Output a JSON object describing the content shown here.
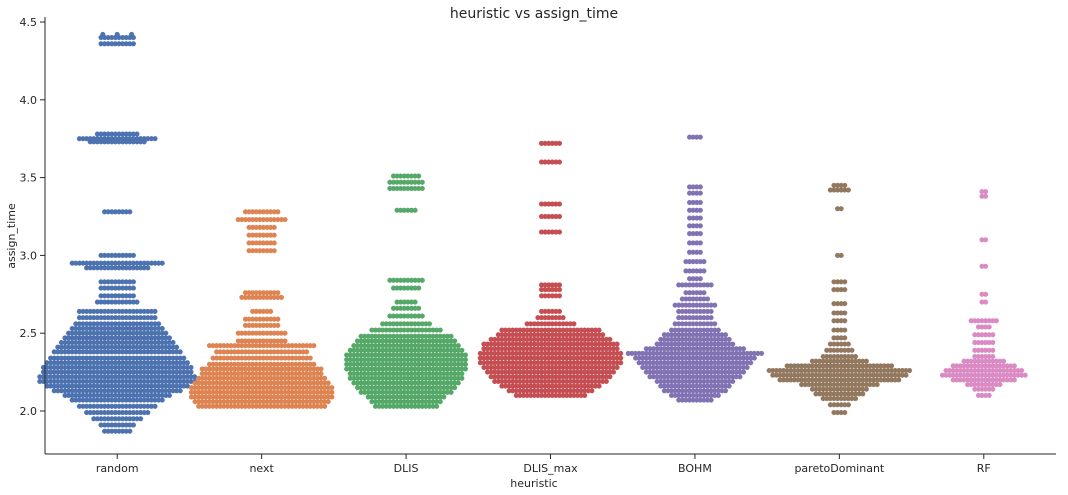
{
  "chart_data": {
    "type": "scatter",
    "subtype": "swarm",
    "title": "heuristic vs assign_time",
    "xlabel": "heuristic",
    "ylabel": "assign_time",
    "ylim": [
      1.72,
      4.53
    ],
    "yticks": [
      2.0,
      2.5,
      3.0,
      3.5,
      4.0,
      4.5
    ],
    "ytick_labels": [
      "2.0",
      "2.5",
      "3.0",
      "3.5",
      "4.0",
      "4.5"
    ],
    "grid": false,
    "legend": "none",
    "categories": [
      "random",
      "next",
      "DLIS",
      "DLIS_max",
      "BOHM",
      "paretoDominant",
      "RF"
    ],
    "colors": [
      "#4c72b0",
      "#dd8452",
      "#55a868",
      "#c44e52",
      "#8172b3",
      "#937860",
      "#da8bc3"
    ],
    "series": [
      {
        "category": "random",
        "bins": [
          [
            1.87,
            8
          ],
          [
            1.91,
            10
          ],
          [
            1.95,
            14
          ],
          [
            1.99,
            18
          ],
          [
            2.03,
            22
          ],
          [
            2.07,
            26
          ],
          [
            2.1,
            30
          ],
          [
            2.13,
            36
          ],
          [
            2.16,
            40
          ],
          [
            2.19,
            44
          ],
          [
            2.22,
            44
          ],
          [
            2.25,
            42
          ],
          [
            2.28,
            42
          ],
          [
            2.31,
            40
          ],
          [
            2.34,
            38
          ],
          [
            2.38,
            36
          ],
          [
            2.41,
            34
          ],
          [
            2.44,
            32
          ],
          [
            2.47,
            30
          ],
          [
            2.5,
            28
          ],
          [
            2.53,
            26
          ],
          [
            2.56,
            24
          ],
          [
            2.6,
            22
          ],
          [
            2.64,
            22
          ],
          [
            2.7,
            12
          ],
          [
            2.74,
            10
          ],
          [
            2.79,
            10
          ],
          [
            2.83,
            10
          ],
          [
            2.92,
            18
          ],
          [
            2.95,
            26
          ],
          [
            3.0,
            10
          ],
          [
            3.28,
            8
          ],
          [
            3.73,
            16
          ],
          [
            3.75,
            22
          ],
          [
            3.78,
            12
          ],
          [
            4.36,
            10
          ],
          [
            4.4,
            10
          ]
        ],
        "extras": [
          4.42,
          4.42,
          4.42
        ]
      },
      {
        "category": "next",
        "bins": [
          [
            2.03,
            36
          ],
          [
            2.06,
            38
          ],
          [
            2.09,
            40
          ],
          [
            2.12,
            40
          ],
          [
            2.15,
            40
          ],
          [
            2.18,
            38
          ],
          [
            2.21,
            36
          ],
          [
            2.24,
            34
          ],
          [
            2.27,
            34
          ],
          [
            2.3,
            30
          ],
          [
            2.34,
            28
          ],
          [
            2.38,
            26
          ],
          [
            2.42,
            30
          ],
          [
            2.45,
            14
          ],
          [
            2.5,
            14
          ],
          [
            2.55,
            10
          ],
          [
            2.59,
            10
          ],
          [
            2.64,
            6
          ],
          [
            2.73,
            12
          ],
          [
            2.76,
            10
          ],
          [
            3.03,
            8
          ],
          [
            3.08,
            8
          ],
          [
            3.13,
            8
          ],
          [
            3.18,
            8
          ],
          [
            3.23,
            14
          ],
          [
            3.28,
            10
          ]
        ],
        "extras": []
      },
      {
        "category": "DLIS",
        "bins": [
          [
            2.03,
            18
          ],
          [
            2.06,
            20
          ],
          [
            2.09,
            22
          ],
          [
            2.12,
            26
          ],
          [
            2.15,
            28
          ],
          [
            2.18,
            30
          ],
          [
            2.21,
            32
          ],
          [
            2.24,
            32
          ],
          [
            2.27,
            34
          ],
          [
            2.3,
            34
          ],
          [
            2.33,
            34
          ],
          [
            2.36,
            34
          ],
          [
            2.39,
            32
          ],
          [
            2.42,
            30
          ],
          [
            2.45,
            28
          ],
          [
            2.48,
            26
          ],
          [
            2.52,
            20
          ],
          [
            2.56,
            14
          ],
          [
            2.61,
            10
          ],
          [
            2.66,
            8
          ],
          [
            2.7,
            6
          ],
          [
            2.79,
            8
          ],
          [
            2.84,
            10
          ],
          [
            3.29,
            6
          ],
          [
            3.43,
            10
          ],
          [
            3.47,
            10
          ],
          [
            3.51,
            8
          ]
        ],
        "extras": []
      },
      {
        "category": "DLIS_max",
        "bins": [
          [
            2.1,
            20
          ],
          [
            2.13,
            24
          ],
          [
            2.16,
            28
          ],
          [
            2.19,
            32
          ],
          [
            2.22,
            34
          ],
          [
            2.25,
            36
          ],
          [
            2.28,
            38
          ],
          [
            2.31,
            40
          ],
          [
            2.34,
            40
          ],
          [
            2.37,
            40
          ],
          [
            2.4,
            38
          ],
          [
            2.43,
            38
          ],
          [
            2.46,
            34
          ],
          [
            2.49,
            30
          ],
          [
            2.52,
            28
          ],
          [
            2.56,
            14
          ],
          [
            2.6,
            8
          ],
          [
            2.64,
            6
          ],
          [
            2.74,
            6
          ],
          [
            2.78,
            6
          ],
          [
            2.81,
            6
          ],
          [
            3.15,
            6
          ],
          [
            3.25,
            6
          ],
          [
            3.33,
            6
          ],
          [
            3.6,
            6
          ],
          [
            3.72,
            6
          ]
        ],
        "extras": []
      },
      {
        "category": "BOHM",
        "bins": [
          [
            2.07,
            10
          ],
          [
            2.1,
            14
          ],
          [
            2.13,
            18
          ],
          [
            2.16,
            20
          ],
          [
            2.19,
            22
          ],
          [
            2.22,
            26
          ],
          [
            2.25,
            28
          ],
          [
            2.28,
            30
          ],
          [
            2.31,
            32
          ],
          [
            2.34,
            34
          ],
          [
            2.37,
            38
          ],
          [
            2.4,
            28
          ],
          [
            2.43,
            22
          ],
          [
            2.46,
            20
          ],
          [
            2.49,
            18
          ],
          [
            2.52,
            14
          ],
          [
            2.56,
            12
          ],
          [
            2.6,
            10
          ],
          [
            2.64,
            10
          ],
          [
            2.68,
            12
          ],
          [
            2.72,
            8
          ],
          [
            2.76,
            6
          ],
          [
            2.81,
            10
          ],
          [
            2.85,
            4
          ],
          [
            2.9,
            6
          ],
          [
            2.96,
            6
          ],
          [
            3.02,
            4
          ],
          [
            3.08,
            4
          ],
          [
            3.14,
            4
          ],
          [
            3.19,
            4
          ],
          [
            3.24,
            4
          ],
          [
            3.29,
            4
          ],
          [
            3.34,
            4
          ],
          [
            3.4,
            4
          ],
          [
            3.44,
            4
          ],
          [
            3.76,
            4
          ]
        ],
        "extras": []
      },
      {
        "category": "paretoDominant",
        "bins": [
          [
            1.99,
            4
          ],
          [
            2.04,
            6
          ],
          [
            2.08,
            10
          ],
          [
            2.11,
            14
          ],
          [
            2.14,
            16
          ],
          [
            2.17,
            22
          ],
          [
            2.2,
            34
          ],
          [
            2.23,
            38
          ],
          [
            2.26,
            40
          ],
          [
            2.29,
            30
          ],
          [
            2.32,
            16
          ],
          [
            2.35,
            10
          ],
          [
            2.39,
            8
          ],
          [
            2.43,
            6
          ],
          [
            2.47,
            4
          ],
          [
            2.52,
            4
          ],
          [
            2.58,
            4
          ],
          [
            2.63,
            4
          ],
          [
            2.69,
            4
          ],
          [
            2.78,
            4
          ],
          [
            2.83,
            4
          ],
          [
            3.0,
            2
          ],
          [
            3.3,
            2
          ],
          [
            3.42,
            6
          ],
          [
            3.45,
            4
          ]
        ],
        "extras": []
      },
      {
        "category": "RF",
        "bins": [
          [
            2.1,
            4
          ],
          [
            2.14,
            6
          ],
          [
            2.17,
            10
          ],
          [
            2.2,
            18
          ],
          [
            2.23,
            24
          ],
          [
            2.26,
            22
          ],
          [
            2.29,
            18
          ],
          [
            2.32,
            12
          ],
          [
            2.35,
            6
          ],
          [
            2.39,
            6
          ],
          [
            2.44,
            6
          ],
          [
            2.49,
            6
          ],
          [
            2.54,
            4
          ],
          [
            2.58,
            8
          ],
          [
            2.7,
            2
          ],
          [
            2.75,
            2
          ],
          [
            2.93,
            2
          ],
          [
            3.1,
            2
          ],
          [
            3.38,
            2
          ],
          [
            3.41,
            2
          ]
        ],
        "extras": []
      }
    ]
  }
}
